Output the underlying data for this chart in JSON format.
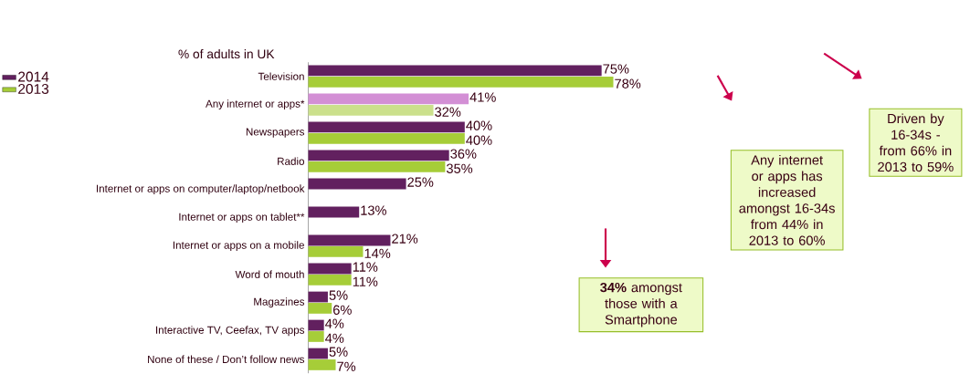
{
  "chart_data": {
    "type": "bar",
    "orientation": "horizontal",
    "xlabel": "% of adults in UK",
    "categories": [
      "Television",
      "Any internet or apps*",
      "Newspapers",
      "Radio",
      "Internet or apps on computer/laptop/netbook",
      "Internet or apps on tablet**",
      "Internet or apps on a mobile",
      "Word of mouth",
      "Magazines",
      "Interactive TV, Ceefax, TV apps",
      "None of these / Don’t follow news"
    ],
    "series": [
      {
        "name": "2014",
        "color": "#62205f",
        "colors": [
          "#62205f",
          "#d38fd5",
          "#62205f",
          "#62205f",
          "#62205f",
          "#62205f",
          "#62205f",
          "#62205f",
          "#62205f",
          "#62205f",
          "#62205f"
        ],
        "values": [
          75,
          41,
          40,
          36,
          25,
          13,
          21,
          11,
          5,
          4,
          5
        ],
        "value_labels": [
          "75%",
          "41%",
          "40%",
          "36%",
          "25%",
          "13%",
          "21%",
          "11%",
          "5%",
          "4%",
          "5%"
        ]
      },
      {
        "name": "2013",
        "color": "#a6cd38",
        "colors": [
          "#a6cd38",
          "#cbe08c",
          "#a6cd38",
          "#a6cd38",
          null,
          null,
          "#a6cd38",
          "#a6cd38",
          "#a6cd38",
          "#a6cd38",
          "#a6cd38"
        ],
        "values": [
          78,
          32,
          40,
          35,
          null,
          null,
          14,
          11,
          6,
          4,
          7
        ],
        "value_labels": [
          "78%",
          "32%",
          "40%",
          "35%",
          null,
          null,
          "14%",
          "11%",
          "6%",
          "4%",
          "7%"
        ]
      }
    ],
    "legend": "top left",
    "annotations": [
      "Driven by 16-34s - from 66% in 2013 to 59%",
      "Any internet or apps has increased amongst 16-34s from 44% in 2013 to 60%",
      "**34%** amongst those with a Smartphone"
    ]
  }
}
